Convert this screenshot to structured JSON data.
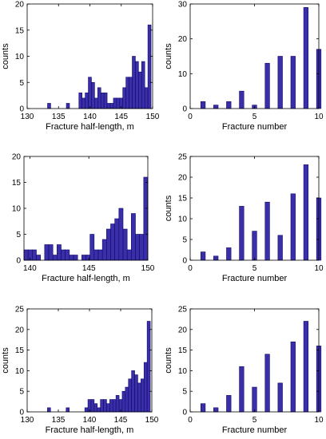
{
  "chart_data": [
    {
      "type": "bar",
      "xlabel": "Fracture half-length, m",
      "ylabel": "counts",
      "xlim": [
        130,
        150
      ],
      "ylim": [
        0,
        20
      ],
      "xticks": [
        130,
        135,
        140,
        145,
        150
      ],
      "yticks": [
        0,
        5,
        10,
        15,
        20
      ],
      "bin_width": 0.5,
      "x": [
        133.5,
        136.5,
        138.5,
        139.0,
        139.5,
        140.0,
        140.5,
        141.0,
        141.5,
        142.0,
        142.5,
        143.0,
        143.5,
        144.0,
        144.5,
        145.0,
        145.5,
        146.0,
        146.5,
        147.0,
        147.5,
        148.0,
        148.5,
        149.0,
        149.5
      ],
      "values": [
        1,
        1,
        3,
        2,
        3,
        6,
        5,
        2,
        4,
        3,
        3,
        1,
        1,
        2,
        2,
        2,
        4,
        6,
        6,
        10,
        9,
        7,
        9,
        4,
        16
      ]
    },
    {
      "type": "bar",
      "xlabel": "Fracture number",
      "ylabel": "counts",
      "xlim": [
        0,
        10
      ],
      "ylim": [
        0,
        30
      ],
      "xticks": [
        0,
        5,
        10
      ],
      "yticks": [
        0,
        10,
        20,
        30
      ],
      "bin_width": 0.35,
      "x": [
        1,
        2,
        3,
        4,
        5,
        6,
        7,
        8,
        9,
        10
      ],
      "values": [
        2,
        1,
        2,
        5,
        1,
        13,
        15,
        15,
        29,
        17
      ]
    },
    {
      "type": "bar",
      "xlabel": "Fracture half-length, m",
      "ylabel": "",
      "xlim": [
        139.5,
        150
      ],
      "ylim": [
        0,
        20
      ],
      "xticks": [
        140,
        145,
        150
      ],
      "yticks": [
        0,
        5,
        10,
        15,
        20
      ],
      "bin_width": 0.35,
      "x": [
        139.675,
        140.025,
        140.375,
        140.725,
        141.425,
        141.775,
        142.125,
        142.475,
        142.825,
        143.175,
        143.525,
        143.875,
        144.575,
        144.925,
        145.275,
        145.625,
        145.975,
        146.325,
        146.675,
        147.025,
        147.375,
        147.725,
        148.075,
        148.425,
        148.775,
        149.125,
        149.475,
        149.825
      ],
      "values": [
        2,
        2,
        2,
        1,
        3,
        3,
        1,
        3,
        2,
        2,
        1,
        1,
        1,
        1,
        5,
        2,
        2,
        4,
        6,
        7,
        8,
        10,
        6,
        2,
        9,
        5,
        5,
        16
      ]
    },
    {
      "type": "bar",
      "xlabel": "Fracture number",
      "ylabel": "counts",
      "xlim": [
        0,
        10
      ],
      "ylim": [
        0,
        25
      ],
      "xticks": [
        0,
        5,
        10
      ],
      "yticks": [
        0,
        5,
        10,
        15,
        20,
        25
      ],
      "bin_width": 0.35,
      "x": [
        1,
        2,
        3,
        4,
        5,
        6,
        7,
        8,
        9,
        10
      ],
      "values": [
        2,
        1,
        3,
        13,
        7,
        14,
        6,
        16,
        23,
        15
      ]
    },
    {
      "type": "bar",
      "xlabel": "Fracture half-length, m",
      "ylabel": "counts",
      "xlim": [
        130,
        150
      ],
      "ylim": [
        0,
        25
      ],
      "xticks": [
        130,
        135,
        140,
        145,
        150
      ],
      "yticks": [
        0,
        5,
        10,
        15,
        20,
        25
      ],
      "bin_width": 0.5,
      "x": [
        133.5,
        136.5,
        139.5,
        140.0,
        140.5,
        141.0,
        141.5,
        142.0,
        142.5,
        143.0,
        143.5,
        144.0,
        144.5,
        145.0,
        145.5,
        146.0,
        146.5,
        147.0,
        147.5,
        148.0,
        148.5,
        149.0,
        149.5
      ],
      "values": [
        1,
        1,
        1,
        3,
        3,
        2,
        1,
        3,
        3,
        2,
        3,
        3,
        4,
        3,
        5,
        6,
        8,
        10,
        9,
        7,
        8,
        12,
        22
      ]
    },
    {
      "type": "bar",
      "xlabel": "Fracture number",
      "ylabel": "counts",
      "xlim": [
        0,
        10
      ],
      "ylim": [
        0,
        25
      ],
      "xticks": [
        0,
        5,
        10
      ],
      "yticks": [
        0,
        5,
        10,
        15,
        20,
        25
      ],
      "bin_width": 0.35,
      "x": [
        1,
        2,
        3,
        4,
        5,
        6,
        7,
        8,
        9,
        10
      ],
      "values": [
        2,
        1,
        4,
        11,
        6,
        14,
        7,
        17,
        22,
        16
      ]
    }
  ]
}
